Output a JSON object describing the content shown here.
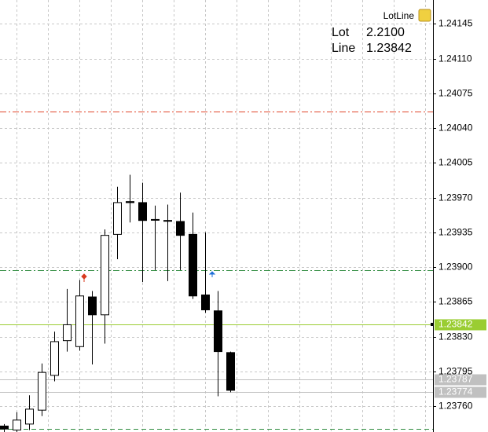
{
  "chart_data": {
    "type": "candlestick",
    "categories": [
      null,
      null,
      null,
      null,
      null,
      null,
      null,
      null,
      null,
      null,
      null,
      null,
      null,
      null,
      null,
      null,
      null,
      null,
      null
    ],
    "open": [
      1.2374,
      1.23736,
      1.23742,
      1.23756,
      1.23791,
      1.23826,
      1.2382,
      1.2387,
      1.23852,
      1.23933,
      1.23966,
      1.23965,
      1.23948,
      1.23947,
      1.23946,
      1.23933,
      1.23872,
      1.23856,
      1.23814
    ],
    "high": [
      1.23742,
      1.23754,
      1.23771,
      1.23803,
      1.23835,
      1.23878,
      1.23887,
      1.23876,
      1.23938,
      1.23981,
      1.23993,
      1.23985,
      1.23962,
      1.23963,
      1.23975,
      1.23955,
      1.23935,
      1.23876,
      1.23815
    ],
    "low": [
      1.23734,
      1.23734,
      1.23736,
      1.2375,
      1.23785,
      1.23815,
      1.23816,
      1.23802,
      1.23823,
      1.23908,
      1.23945,
      1.23885,
      1.23897,
      1.23886,
      1.23897,
      1.23868,
      1.23854,
      1.2377,
      1.23774
    ],
    "close": [
      1.23737,
      1.23746,
      1.23757,
      1.23794,
      1.23825,
      1.23842,
      1.23871,
      1.23852,
      1.23932,
      1.23965,
      1.23965,
      1.23947,
      1.23948,
      1.23947,
      1.23932,
      1.23871,
      1.23857,
      1.23815,
      1.23776
    ],
    "bull_color": "#ffffff",
    "bear_color": "#000000",
    "ylim": [
      1.23734,
      1.24169
    ],
    "yticks": [
      1.24145,
      {
        "value": 1.2411,
        "label": "1.24110"
      },
      1.24075,
      {
        "value": 1.2404,
        "label": "1.24040"
      },
      1.24005,
      {
        "value": 1.2397,
        "label": "1.23970"
      },
      1.23935,
      {
        "value": 1.239,
        "label": "1.23900"
      },
      1.23865,
      {
        "value": 1.2383,
        "label": "1.23830"
      },
      1.23795,
      {
        "value": 1.2376,
        "label": "1.23760"
      }
    ],
    "grid": true,
    "hlines": [
      {
        "value": 1.24057,
        "color": "#e0452a",
        "style": "dashdot"
      },
      {
        "value": 1.23897,
        "color": "#2e8b3e",
        "style": "dashdot"
      },
      {
        "value": 1.23737,
        "color": "#2e8b3e",
        "style": "dash"
      },
      {
        "value": 1.23842,
        "color": "#9acd32",
        "style": "solid",
        "label": "1.23842"
      },
      {
        "value": 1.23787,
        "color": "#c0c0c0",
        "style": "solid",
        "label": "1.23787"
      },
      {
        "value": 1.23774,
        "color": "#c0c0c0",
        "style": "solid",
        "label": "1.23774"
      }
    ],
    "panel": {
      "name": "LotLine",
      "rows": [
        [
          "Lot",
          "2.2100"
        ],
        [
          "Line",
          "1.23842"
        ]
      ]
    }
  }
}
